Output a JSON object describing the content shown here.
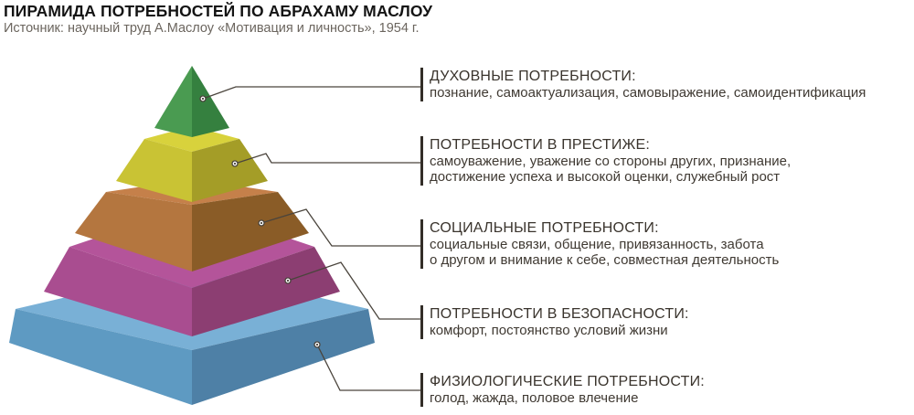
{
  "header": {
    "title": "ПИРАМИДА ПОТРЕБНОСТЕЙ ПО АБРАХАМУ МАСЛОУ",
    "source": "Источник: научный труд А.Маслоу «Мотивация и личность», 1954 г."
  },
  "levels": [
    {
      "key": "spiritual",
      "heading": "ДУХОВНЫЕ ПОТРЕБНОСТИ:",
      "lines": [
        "познание, самоактуализация, самовыражение, самоидентификация"
      ],
      "colors": {
        "left": "#4A9B51",
        "right": "#35803F"
      }
    },
    {
      "key": "prestige",
      "heading": "ПОТРЕБНОСТИ В ПРЕСТИЖЕ:",
      "lines": [
        "самоуважение, уважение со стороны других, признание,",
        "достижение успеха и высокой оценки, служебный рост"
      ],
      "colors": {
        "top": "#D8D23C",
        "left": "#C9C334",
        "right": "#A49D27"
      }
    },
    {
      "key": "social",
      "heading": "СОЦИАЛЬНЫЕ ПОТРЕБНОСТИ:",
      "lines": [
        "социальные связи, общение, привязанность, забота",
        "о другом и внимание к себе, совместная деятельность"
      ],
      "colors": {
        "top": "#C5804A",
        "left": "#B4763F",
        "right": "#8A5C27"
      }
    },
    {
      "key": "safety",
      "heading": "ПОТРЕБНОСТИ В БЕЗОПАСНОСТИ:",
      "lines": [
        "комфорт, постоянство условий жизни"
      ],
      "colors": {
        "top": "#B4549A",
        "left": "#A94D90",
        "right": "#8C3E72"
      }
    },
    {
      "key": "physiological",
      "heading": "ФИЗИОЛОГИЧЕСКИЕ ПОТРЕБНОСТИ:",
      "lines": [
        "голод, жажда, половое влечение"
      ],
      "colors": {
        "top": "#79B0D6",
        "left": "#5E9AC2",
        "right": "#4E80A6"
      }
    }
  ],
  "palette": {
    "leader_line": "#4A443C",
    "tick_bar": "#332E28",
    "heading_text": "#3A342D",
    "body_text": "#3F3932",
    "title_text": "#141414",
    "source_text": "#6B655E",
    "background": "#FFFFFF"
  }
}
